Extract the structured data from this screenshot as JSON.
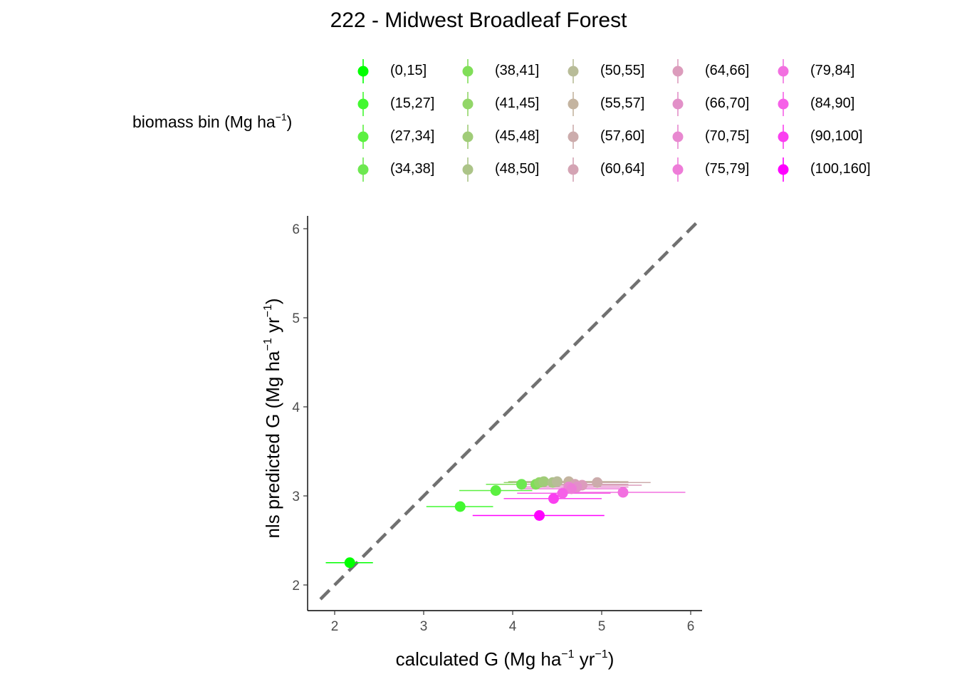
{
  "chart_data": {
    "type": "scatter",
    "title": "222 - Midwest Broadleaf Forest",
    "xlabel": {
      "base": "calculated G (Mg ha",
      "exp1": "−1",
      "mid": " yr",
      "exp2": "−1",
      "end": ")"
    },
    "ylabel": {
      "base": "nls predicted G (Mg ha",
      "exp1": "−1",
      "mid": " yr",
      "exp2": "−1",
      "end": ")"
    },
    "xlim": [
      1.75,
      6.1
    ],
    "ylim": [
      1.7,
      6.12
    ],
    "x_ticks": [
      "2",
      "3",
      "4",
      "5",
      "6"
    ],
    "y_ticks": [
      "2",
      "3",
      "4",
      "5",
      "6"
    ],
    "reference_line": {
      "style": "dashed",
      "color": "#707070",
      "slope": 1,
      "intercept": 0
    },
    "legend": {
      "title": {
        "base": "biomass bin (Mg ha",
        "exp": "−1",
        "end": ")"
      },
      "placement": "top",
      "columns": 5
    },
    "series": [
      {
        "name": "(0,15]",
        "color": "#00FF00",
        "x": 2.17,
        "y": 2.25,
        "xmin": 1.9,
        "xmax": 2.43
      },
      {
        "name": "(15,27]",
        "color": "#42F830",
        "x": 3.41,
        "y": 2.88,
        "xmin": 3.03,
        "xmax": 3.78
      },
      {
        "name": "(27,34]",
        "color": "#5BF040",
        "x": 3.81,
        "y": 3.06,
        "xmin": 3.4,
        "xmax": 4.22
      },
      {
        "name": "(34,38]",
        "color": "#6DE850",
        "x": 4.1,
        "y": 3.13,
        "xmin": 3.7,
        "xmax": 4.5
      },
      {
        "name": "(38,41]",
        "color": "#80DE58",
        "x": 4.26,
        "y": 3.13,
        "xmin": 3.85,
        "xmax": 4.67
      },
      {
        "name": "(41,45]",
        "color": "#92D668",
        "x": 4.3,
        "y": 3.15,
        "xmin": 3.9,
        "xmax": 4.8
      },
      {
        "name": "(45,48]",
        "color": "#A0CC78",
        "x": 4.35,
        "y": 3.16,
        "xmin": 3.95,
        "xmax": 4.9
      },
      {
        "name": "(48,50]",
        "color": "#ACC488",
        "x": 4.45,
        "y": 3.15,
        "xmin": 4.0,
        "xmax": 5.0
      },
      {
        "name": "(50,55]",
        "color": "#B8BC98",
        "x": 4.5,
        "y": 3.16,
        "xmin": 4.05,
        "xmax": 5.2
      },
      {
        "name": "(55,57]",
        "color": "#C4B4A0",
        "x": 4.63,
        "y": 3.16,
        "xmin": 4.1,
        "xmax": 5.3
      },
      {
        "name": "(57,60]",
        "color": "#CCACAC",
        "x": 4.95,
        "y": 3.15,
        "xmin": 4.3,
        "xmax": 5.55
      },
      {
        "name": "(60,64]",
        "color": "#D4A4B4",
        "x": 4.7,
        "y": 3.13,
        "xmin": 4.15,
        "xmax": 5.3
      },
      {
        "name": "(64,66]",
        "color": "#DC9CBC",
        "x": 4.78,
        "y": 3.12,
        "xmin": 4.2,
        "xmax": 5.45
      },
      {
        "name": "(66,70]",
        "color": "#E290C8",
        "x": 4.72,
        "y": 3.1,
        "xmin": 4.15,
        "xmax": 5.3
      },
      {
        "name": "(70,75]",
        "color": "#E888D0",
        "x": 4.63,
        "y": 3.1,
        "xmin": 4.05,
        "xmax": 5.2
      },
      {
        "name": "(75,79]",
        "color": "#EE7CD8",
        "x": 4.66,
        "y": 3.08,
        "xmin": 4.1,
        "xmax": 5.2
      },
      {
        "name": "(79,84]",
        "color": "#F270E0",
        "x": 5.24,
        "y": 3.04,
        "xmin": 4.5,
        "xmax": 5.94
      },
      {
        "name": "(84,90]",
        "color": "#F660E8",
        "x": 4.56,
        "y": 3.03,
        "xmin": 4.05,
        "xmax": 5.1
      },
      {
        "name": "(90,100]",
        "color": "#FA40F0",
        "x": 4.46,
        "y": 2.97,
        "xmin": 3.9,
        "xmax": 5.0
      },
      {
        "name": "(100,160]",
        "color": "#FF00FF",
        "x": 4.3,
        "y": 2.78,
        "xmin": 3.55,
        "xmax": 5.03
      }
    ]
  }
}
